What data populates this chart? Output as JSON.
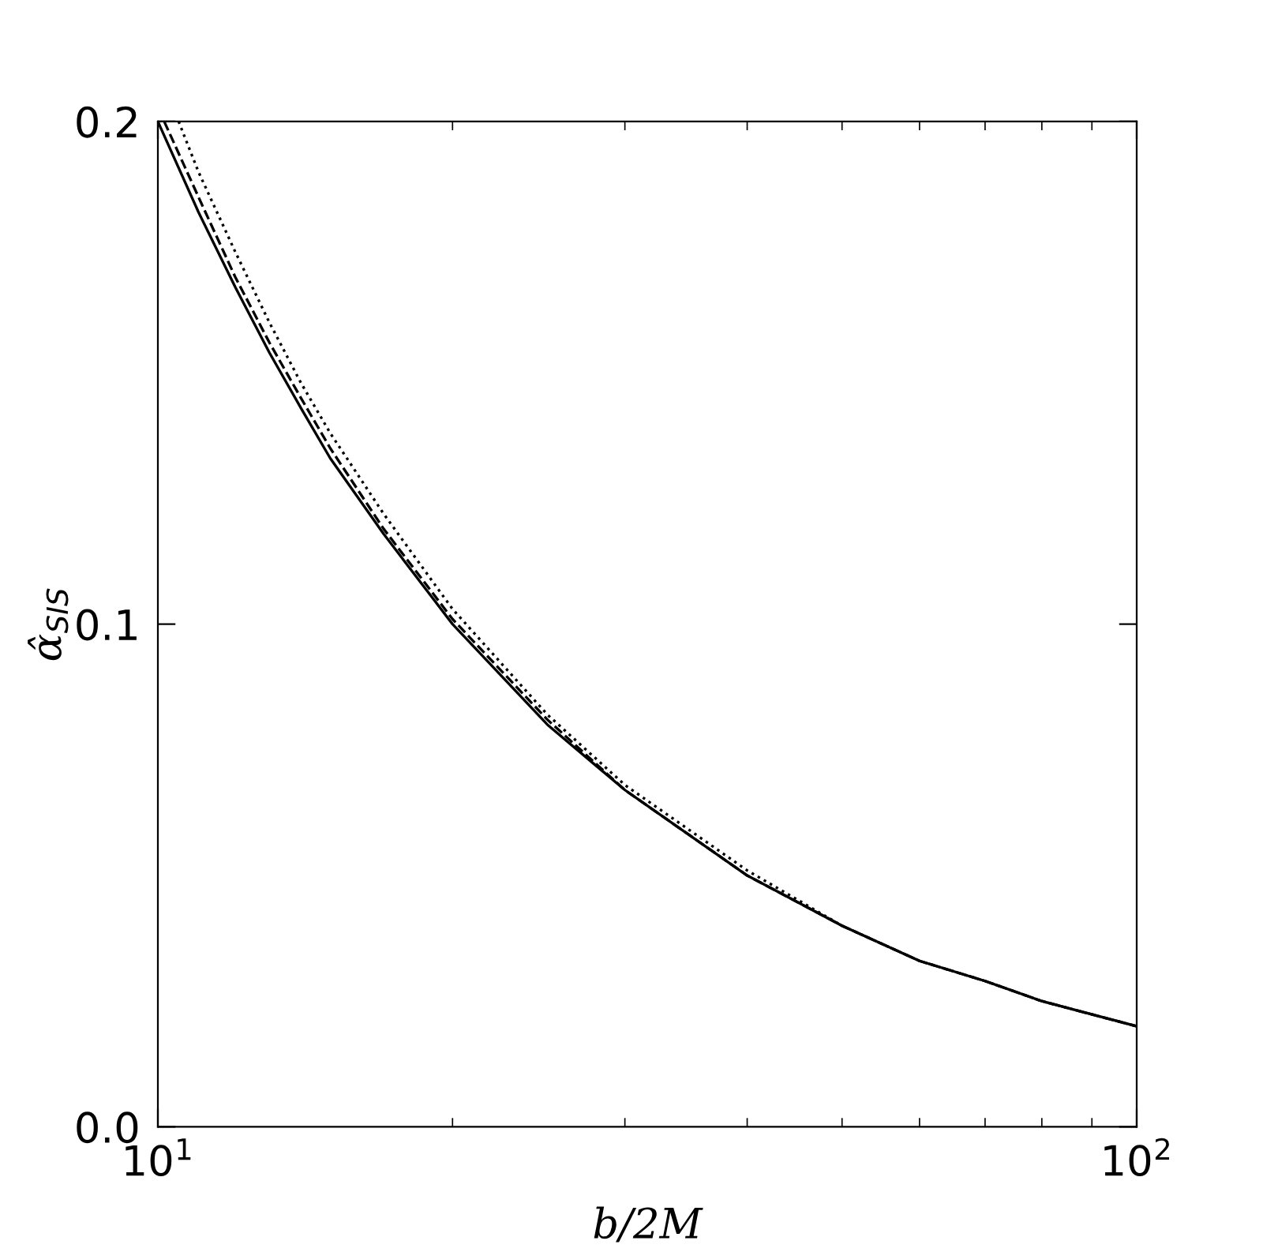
{
  "chart_data": {
    "type": "line",
    "xlabel": "b/2M",
    "ylabel": "α̂$_{SIS}$",
    "log": "x",
    "grid": false,
    "xlim": [
      10,
      100
    ],
    "xticks": [
      {
        "value": 10,
        "label": "10$^{1}$"
      },
      {
        "value": 100,
        "label": "10$^{2}$"
      }
    ],
    "ylim": [
      0,
      0.2
    ],
    "yticks": [
      {
        "value": 0,
        "label": "0.0"
      },
      0.1,
      0.2
    ],
    "series": [
      {
        "color": "#000000",
        "line_style": "solid",
        "x": [
          10,
          11,
          12,
          13,
          14,
          15,
          17,
          20,
          25,
          30,
          40,
          50,
          60,
          70,
          80,
          100
        ],
        "values": [
          0.2,
          0.182,
          0.167,
          0.154,
          0.143,
          0.133,
          0.118,
          0.1,
          0.08,
          0.067,
          0.05,
          0.04,
          0.033,
          0.029,
          0.025,
          0.02
        ]
      },
      {
        "color": "#000000",
        "line_style": "dashed",
        "x": [
          10.15,
          11,
          12,
          13,
          14,
          15,
          17,
          20,
          25,
          30,
          40,
          50,
          60,
          70,
          80,
          100
        ],
        "values": [
          0.2,
          0.185,
          0.169,
          0.156,
          0.145,
          0.135,
          0.119,
          0.101,
          0.081,
          0.067,
          0.05,
          0.04,
          0.033,
          0.029,
          0.025,
          0.02
        ]
      },
      {
        "color": "#000000",
        "line_style": "dotted",
        "x": [
          10.5,
          11,
          12,
          13,
          14,
          15,
          17,
          20,
          25,
          30,
          40,
          50,
          60,
          70,
          80,
          100
        ],
        "values": [
          0.2,
          0.19,
          0.174,
          0.16,
          0.148,
          0.138,
          0.122,
          0.103,
          0.082,
          0.068,
          0.051,
          0.04,
          0.033,
          0.029,
          0.025,
          0.02
        ]
      }
    ]
  }
}
